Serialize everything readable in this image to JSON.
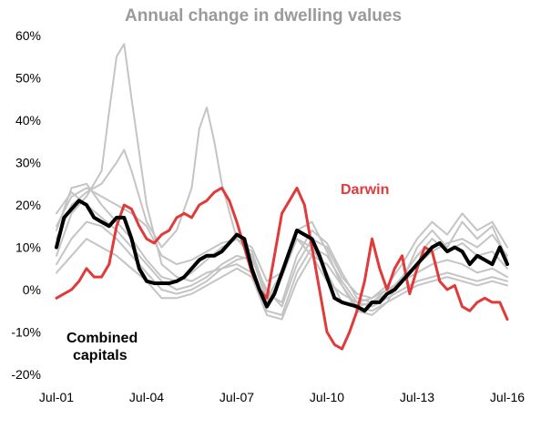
{
  "chart_data": {
    "type": "line",
    "title": "Annual change in dwelling values",
    "xlabel": "",
    "ylabel": "",
    "x_ticks": [
      "Jul-01",
      "Jul-04",
      "Jul-07",
      "Jul-10",
      "Jul-13",
      "Jul-16"
    ],
    "y_ticks": [
      "60%",
      "50%",
      "40%",
      "30%",
      "20%",
      "10%",
      "0%",
      "-10%",
      "-20%"
    ],
    "xlim": [
      2001.5,
      2016.5
    ],
    "ylim": [
      -20,
      60
    ],
    "grid": false,
    "legend": "none",
    "colors": {
      "title": "#9a9a9a",
      "highlight": "#e03a3a",
      "combined": "#000000",
      "others": "#c4c4c4"
    },
    "annotations": [
      {
        "text": "Darwin",
        "color": "#e03a3a"
      },
      {
        "text": "Combined",
        "color": "#000000"
      },
      {
        "text": "capitals",
        "color": "#000000"
      }
    ],
    "series": [
      {
        "name": "Combined capitals",
        "color": "#000000",
        "width": 4,
        "x": [
          2001.5,
          2001.75,
          2002.0,
          2002.25,
          2002.5,
          2002.75,
          2003.0,
          2003.25,
          2003.5,
          2003.75,
          2004.0,
          2004.25,
          2004.5,
          2004.75,
          2005.0,
          2005.25,
          2005.5,
          2005.75,
          2006.0,
          2006.25,
          2006.5,
          2006.75,
          2007.0,
          2007.25,
          2007.5,
          2007.75,
          2008.0,
          2008.25,
          2008.5,
          2008.75,
          2009.0,
          2009.25,
          2009.5,
          2009.75,
          2010.0,
          2010.25,
          2010.5,
          2010.75,
          2011.0,
          2011.25,
          2011.5,
          2011.75,
          2012.0,
          2012.25,
          2012.5,
          2012.75,
          2013.0,
          2013.25,
          2013.5,
          2013.75,
          2014.0,
          2014.25,
          2014.5,
          2014.75,
          2015.0,
          2015.25,
          2015.5,
          2015.75,
          2016.0,
          2016.25,
          2016.5
        ],
        "y": [
          10,
          17,
          19,
          21,
          20,
          17,
          16,
          15,
          17,
          17,
          12,
          5,
          2,
          1.5,
          1.5,
          1.5,
          2,
          3,
          5,
          7,
          8,
          8,
          9,
          11,
          13,
          12,
          5,
          0,
          -4,
          -1,
          4,
          9,
          14,
          13,
          12,
          8,
          3,
          -2,
          -3,
          -3.5,
          -4,
          -5,
          -3,
          -3,
          -1,
          0,
          2,
          4,
          6,
          8,
          10,
          11,
          9,
          10,
          9,
          6,
          8,
          7,
          6,
          10,
          6
        ]
      },
      {
        "name": "Darwin",
        "color": "#e03a3a",
        "width": 3,
        "x": [
          2001.5,
          2001.75,
          2002.0,
          2002.25,
          2002.5,
          2002.75,
          2003.0,
          2003.25,
          2003.5,
          2003.75,
          2004.0,
          2004.25,
          2004.5,
          2004.75,
          2005.0,
          2005.25,
          2005.5,
          2005.75,
          2006.0,
          2006.25,
          2006.5,
          2006.75,
          2007.0,
          2007.25,
          2007.5,
          2007.75,
          2008.0,
          2008.25,
          2008.5,
          2008.75,
          2009.0,
          2009.25,
          2009.5,
          2009.75,
          2010.0,
          2010.25,
          2010.5,
          2010.75,
          2011.0,
          2011.25,
          2011.5,
          2011.75,
          2012.0,
          2012.25,
          2012.5,
          2012.75,
          2013.0,
          2013.25,
          2013.5,
          2013.75,
          2014.0,
          2014.25,
          2014.5,
          2014.75,
          2015.0,
          2015.25,
          2015.5,
          2015.75,
          2016.0,
          2016.25,
          2016.5
        ],
        "y": [
          -2,
          -1,
          0,
          2,
          5,
          3,
          3,
          6,
          15,
          20,
          19,
          15,
          12,
          11,
          13,
          14,
          17,
          18,
          17,
          20,
          21,
          23,
          24,
          21,
          16,
          10,
          4,
          0,
          -2,
          8,
          18,
          21,
          24,
          20,
          10,
          0,
          -10,
          -13,
          -14,
          -10,
          -5,
          2,
          12,
          5,
          0,
          5,
          8,
          -1,
          5,
          10,
          9,
          2,
          0,
          1,
          -4,
          -5,
          -3,
          -2,
          -3,
          -3,
          -7
        ]
      },
      {
        "color": "#c4c4c4",
        "width": 2,
        "x": [
          2001.5,
          2002.0,
          2002.5,
          2003.0,
          2003.25,
          2003.5,
          2003.75,
          2004.0,
          2004.5,
          2005.0,
          2005.5,
          2006.0,
          2006.5,
          2007.0,
          2007.5,
          2008.0,
          2008.5,
          2009.0,
          2009.5,
          2010.0,
          2010.5,
          2011.0,
          2011.5,
          2012.0,
          2012.5,
          2013.0,
          2013.5,
          2014.0,
          2014.5,
          2015.0,
          2015.5,
          2016.0,
          2016.5
        ],
        "y": [
          8,
          18,
          22,
          28,
          42,
          55,
          58,
          45,
          20,
          6,
          3,
          2,
          4,
          5,
          7,
          8,
          -2,
          4,
          12,
          10,
          4,
          -3,
          -4,
          -3,
          0,
          2,
          10,
          14,
          10,
          16,
          12,
          15,
          7
        ]
      },
      {
        "color": "#c4c4c4",
        "width": 2,
        "x": [
          2001.5,
          2002.0,
          2002.5,
          2003.0,
          2003.5,
          2003.75,
          2004.0,
          2004.5,
          2005.0,
          2005.5,
          2006.0,
          2006.25,
          2006.5,
          2006.75,
          2007.0,
          2007.5,
          2008.0,
          2008.5,
          2009.0,
          2009.5,
          2010.0,
          2010.5,
          2011.0,
          2011.5,
          2012.0,
          2012.5,
          2013.0,
          2013.5,
          2014.0,
          2014.5,
          2015.0,
          2015.5,
          2016.0,
          2016.5
        ],
        "y": [
          12,
          20,
          23,
          25,
          30,
          33,
          28,
          16,
          10,
          14,
          24,
          38,
          43,
          35,
          25,
          12,
          8,
          -3,
          3,
          12,
          8,
          2,
          -1,
          -3,
          -2,
          1,
          6,
          12,
          16,
          13,
          18,
          14,
          16,
          10
        ]
      },
      {
        "color": "#c4c4c4",
        "width": 2,
        "x": [
          2001.5,
          2002.0,
          2002.5,
          2003.0,
          2003.5,
          2004.0,
          2004.5,
          2005.0,
          2005.5,
          2006.0,
          2006.5,
          2007.0,
          2007.5,
          2008.0,
          2008.5,
          2009.0,
          2009.5,
          2010.0,
          2010.5,
          2011.0,
          2011.5,
          2012.0,
          2012.5,
          2013.0,
          2013.5,
          2014.0,
          2014.5,
          2015.0,
          2015.5,
          2016.0,
          2016.5
        ],
        "y": [
          15,
          22,
          24,
          22,
          20,
          18,
          15,
          8,
          6,
          7,
          9,
          11,
          12,
          10,
          2,
          4,
          14,
          16,
          9,
          1,
          -5,
          -6,
          -3,
          3,
          8,
          12,
          9,
          11,
          8,
          9,
          5
        ]
      },
      {
        "color": "#c4c4c4",
        "width": 2,
        "x": [
          2001.5,
          2002.0,
          2002.5,
          2003.0,
          2003.5,
          2004.0,
          2004.5,
          2005.0,
          2005.5,
          2006.0,
          2006.5,
          2007.0,
          2007.5,
          2008.0,
          2008.5,
          2009.0,
          2009.5,
          2010.0,
          2010.5,
          2011.0,
          2011.5,
          2012.0,
          2012.5,
          2013.0,
          2013.5,
          2014.0,
          2014.5,
          2015.0,
          2015.5,
          2016.0,
          2016.5
        ],
        "y": [
          18,
          23,
          20,
          17,
          14,
          10,
          6,
          2,
          0,
          1,
          3,
          6,
          8,
          7,
          0,
          -4,
          6,
          12,
          10,
          3,
          -1,
          -2,
          0,
          2,
          4,
          6,
          7,
          6,
          4,
          5,
          3
        ]
      },
      {
        "color": "#c4c4c4",
        "width": 2,
        "x": [
          2001.5,
          2002.0,
          2002.5,
          2003.0,
          2003.5,
          2004.0,
          2004.5,
          2005.0,
          2005.5,
          2006.0,
          2006.5,
          2007.0,
          2007.5,
          2008.0,
          2008.5,
          2009.0,
          2009.5,
          2010.0,
          2010.5,
          2011.0,
          2011.5,
          2012.0,
          2012.5,
          2013.0,
          2013.5,
          2014.0,
          2014.5,
          2015.0,
          2015.5,
          2016.0,
          2016.5
        ],
        "y": [
          6,
          12,
          16,
          15,
          12,
          8,
          4,
          0,
          -1,
          0,
          2,
          5,
          6,
          4,
          -5,
          -6,
          4,
          10,
          8,
          2,
          -3,
          -4,
          -2,
          0,
          2,
          3,
          4,
          3,
          2,
          3,
          2
        ]
      },
      {
        "color": "#c4c4c4",
        "width": 2,
        "x": [
          2001.5,
          2002.0,
          2002.5,
          2003.0,
          2003.5,
          2004.0,
          2004.5,
          2005.0,
          2005.5,
          2006.0,
          2006.5,
          2007.0,
          2007.5,
          2008.0,
          2008.5,
          2009.0,
          2009.5,
          2010.0,
          2010.5,
          2011.0,
          2011.5,
          2012.0,
          2012.5,
          2013.0,
          2013.5,
          2014.0,
          2014.5,
          2015.0,
          2015.5,
          2016.0,
          2016.5
        ],
        "y": [
          4,
          8,
          12,
          10,
          8,
          5,
          2,
          -2,
          -2,
          -1,
          1,
          3,
          5,
          3,
          -6,
          -7,
          2,
          8,
          6,
          1,
          -4,
          -5,
          -3,
          -1,
          1,
          2,
          3,
          2,
          1,
          2,
          1
        ]
      },
      {
        "color": "#c4c4c4",
        "width": 2,
        "x": [
          2001.5,
          2002.0,
          2002.5,
          2003.0,
          2003.5,
          2004.0,
          2004.5,
          2005.0,
          2005.5,
          2006.0,
          2006.5,
          2007.0,
          2007.5,
          2008.0,
          2008.5,
          2009.0,
          2009.5,
          2010.0,
          2010.5,
          2011.0,
          2011.5,
          2012.0,
          2012.5,
          2013.0,
          2013.5,
          2014.0,
          2014.5,
          2015.0,
          2015.5,
          2016.0,
          2016.5
        ],
        "y": [
          14,
          24,
          25,
          20,
          16,
          12,
          7,
          3,
          2,
          4,
          7,
          10,
          12,
          9,
          -1,
          -3,
          8,
          14,
          11,
          4,
          -2,
          -3,
          -1,
          3,
          6,
          9,
          11,
          12,
          10,
          13,
          8
        ]
      }
    ]
  }
}
